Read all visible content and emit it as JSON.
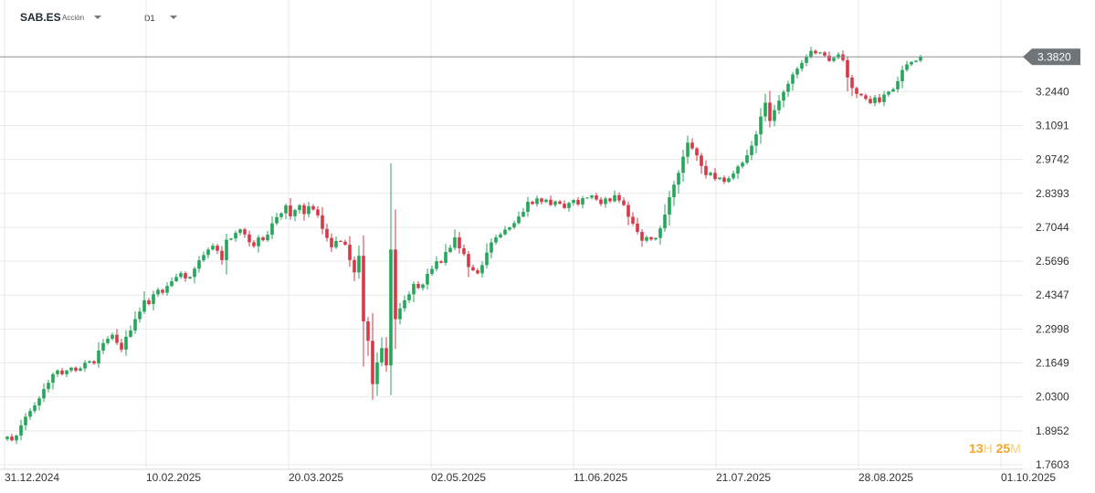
{
  "toolbar": {
    "symbol": "SAB.ES",
    "instrument_type": "Acción",
    "timeframe": "D1",
    "symbol_dropdown_icon": "caret-down-icon",
    "timeframe_dropdown_icon": "caret-down-icon"
  },
  "timer": {
    "hours": "13",
    "h_unit": "H",
    "minutes": "25",
    "m_unit": "M"
  },
  "colors": {
    "up": "#26a65b",
    "down": "#d63a47",
    "grid": "#e9e9e9",
    "price_line": "#8a8f94",
    "price_tag": "#6f7478"
  },
  "chart_data": {
    "type": "candlestick",
    "title": "",
    "x_tick_labels": [
      "31.12.2024",
      "10.02.2025",
      "20.03.2025",
      "02.05.2025",
      "11.06.2025",
      "21.07.2025",
      "28.08.2025",
      "01.10.2025"
    ],
    "y_tick_labels": [
      "3.2440",
      "3.1091",
      "2.9742",
      "2.8393",
      "2.7044",
      "2.5696",
      "2.4347",
      "2.2998",
      "2.1649",
      "2.0300",
      "1.8952",
      "1.7603"
    ],
    "ylim": [
      1.7603,
      3.4012
    ],
    "grid": true,
    "current_price": "3.3820",
    "closes": [
      1.872,
      1.857,
      1.876,
      1.917,
      1.951,
      1.974,
      1.996,
      2.024,
      2.061,
      2.086,
      2.12,
      2.135,
      2.12,
      2.135,
      2.146,
      2.134,
      2.143,
      2.166,
      2.172,
      2.163,
      2.214,
      2.244,
      2.261,
      2.277,
      2.245,
      2.218,
      2.269,
      2.294,
      2.339,
      2.369,
      2.414,
      2.399,
      2.438,
      2.456,
      2.444,
      2.471,
      2.49,
      2.507,
      2.522,
      2.501,
      2.507,
      2.54,
      2.573,
      2.594,
      2.616,
      2.631,
      2.611,
      2.574,
      2.655,
      2.66,
      2.682,
      2.696,
      2.676,
      2.645,
      2.629,
      2.664,
      2.653,
      2.675,
      2.72,
      2.745,
      2.76,
      2.791,
      2.748,
      2.773,
      2.792,
      2.757,
      2.788,
      2.775,
      2.752,
      2.698,
      2.662,
      2.625,
      2.65,
      2.647,
      2.635,
      2.574,
      2.525,
      2.591,
      2.33,
      2.253,
      2.081,
      2.167,
      2.224,
      2.155,
      2.616,
      2.339,
      2.382,
      2.414,
      2.438,
      2.479,
      2.463,
      2.477,
      2.519,
      2.539,
      2.569,
      2.563,
      2.606,
      2.623,
      2.664,
      2.621,
      2.598,
      2.546,
      2.533,
      2.521,
      2.554,
      2.604,
      2.644,
      2.664,
      2.676,
      2.695,
      2.704,
      2.721,
      2.747,
      2.766,
      2.806,
      2.797,
      2.819,
      2.805,
      2.814,
      2.793,
      2.807,
      2.798,
      2.781,
      2.801,
      2.813,
      2.795,
      2.82,
      2.822,
      2.831,
      2.815,
      2.797,
      2.819,
      2.808,
      2.832,
      2.811,
      2.793,
      2.746,
      2.719,
      2.686,
      2.651,
      2.665,
      2.656,
      2.662,
      2.7,
      2.755,
      2.824,
      2.874,
      2.921,
      2.985,
      3.041,
      3.018,
      2.99,
      2.948,
      2.912,
      2.921,
      2.896,
      2.902,
      2.885,
      2.899,
      2.918,
      2.946,
      2.961,
      2.991,
      3.029,
      3.074,
      3.145,
      3.2,
      3.127,
      3.17,
      3.208,
      3.243,
      3.275,
      3.312,
      3.335,
      3.358,
      3.382,
      3.406,
      3.396,
      3.4,
      3.387,
      3.366,
      3.378,
      3.392,
      3.369,
      3.3,
      3.258,
      3.235,
      3.229,
      3.215,
      3.198,
      3.221,
      3.202,
      3.232,
      3.244,
      3.253,
      3.285,
      3.33,
      3.352,
      3.362,
      3.367,
      3.382
    ]
  }
}
